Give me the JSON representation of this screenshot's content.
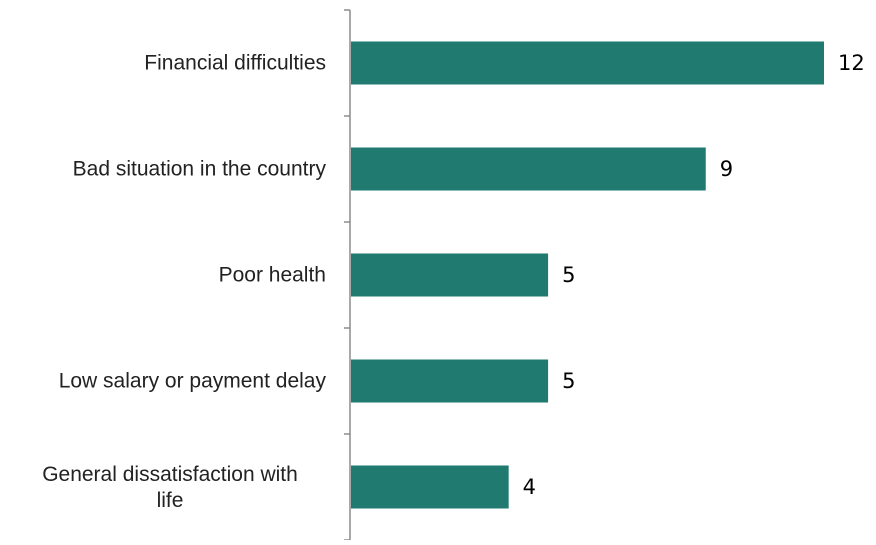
{
  "chart_data": {
    "type": "bar",
    "orientation": "horizontal",
    "categories": [
      "Financial difficulties",
      "Bad situation in the country",
      "Poor health",
      "Low salary or payment delay",
      "General dissatisfaction with life"
    ],
    "values": [
      12,
      9,
      5,
      5,
      4
    ],
    "data_labels": [
      "12",
      "9",
      "5",
      "5",
      "4"
    ],
    "title": "",
    "xlabel": "",
    "ylabel": "",
    "xlim": [
      0,
      12.4
    ],
    "grid": false,
    "legend": "none",
    "bar_color": "#217a6f"
  }
}
